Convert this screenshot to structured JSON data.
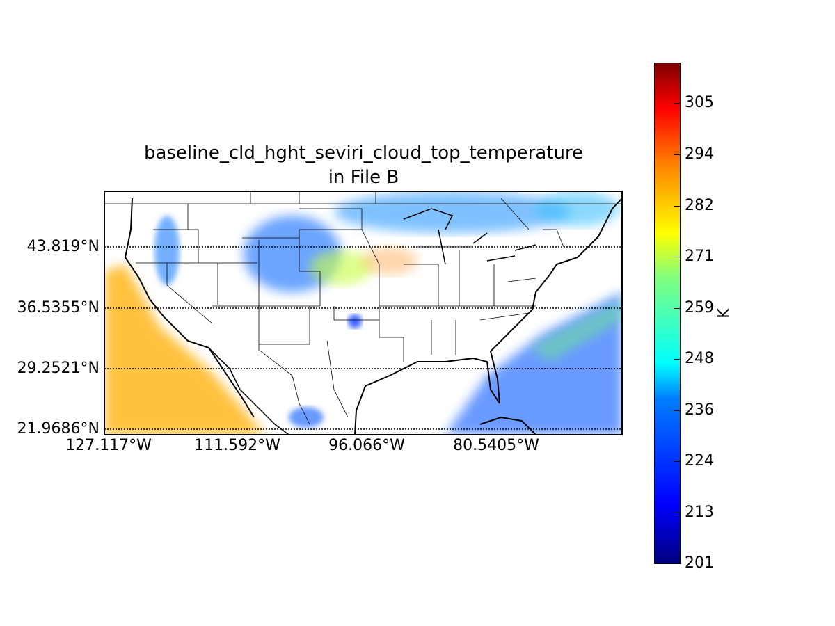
{
  "title": {
    "line1": "baseline_cld_hght_seviri_cloud_top_temperature",
    "line2": "in File B"
  },
  "map": {
    "projection": "cylindrical",
    "lat_labels": [
      "43.819°N",
      "36.5355°N",
      "29.2521°N",
      "21.9686°N"
    ],
    "lon_labels": [
      "127.117°W",
      "111.592°W",
      "96.066°W",
      "80.5405°W"
    ],
    "parallels_style": "dotted"
  },
  "colorbar": {
    "label": "K",
    "colormap": "jet",
    "range": [
      201,
      315
    ],
    "ticks": [
      "305",
      "294",
      "282",
      "271",
      "259",
      "248",
      "236",
      "224",
      "213",
      "201"
    ]
  }
}
